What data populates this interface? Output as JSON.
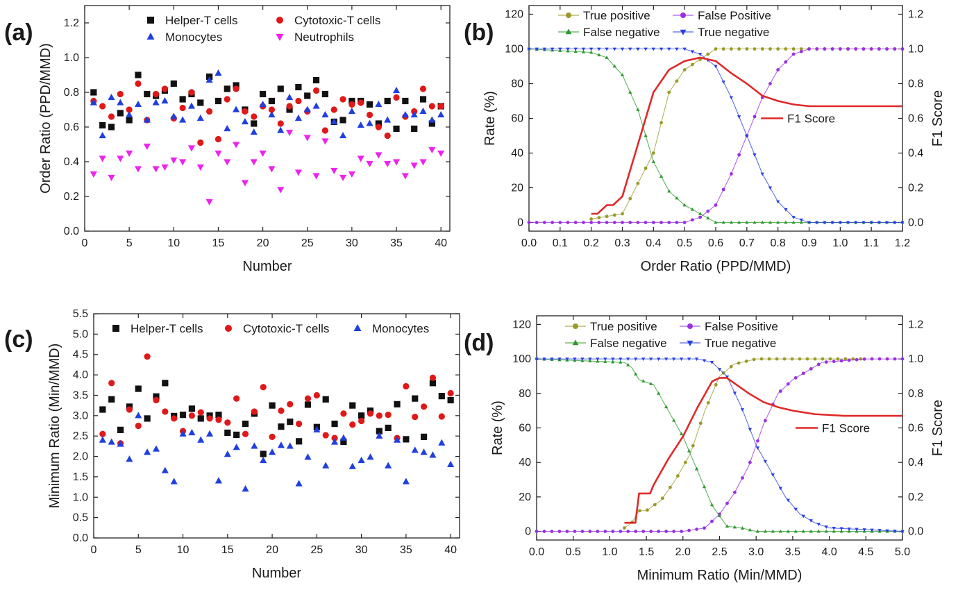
{
  "chart_data": [
    {
      "id": "a",
      "panel_label": "(a)",
      "type": "scatter",
      "xlabel": "Number",
      "ylabel": "Order Ratio (PPD/MMD)",
      "xlim": [
        0,
        41
      ],
      "ylim": [
        0.0,
        1.3
      ],
      "xticks": [
        0,
        5,
        10,
        15,
        20,
        25,
        30,
        35,
        40
      ],
      "yticks": [
        0.0,
        0.2,
        0.4,
        0.6,
        0.8,
        1.0,
        1.2
      ],
      "ytick_decimals": 1,
      "legend_columns": 2,
      "series": [
        {
          "name": "Helper-T cells",
          "marker": "square",
          "color": "#111111",
          "x": [
            1,
            2,
            3,
            4,
            5,
            6,
            7,
            8,
            9,
            10,
            11,
            12,
            13,
            14,
            15,
            16,
            17,
            18,
            19,
            20,
            21,
            22,
            23,
            24,
            25,
            26,
            27,
            28,
            29,
            30,
            31,
            32,
            33,
            34,
            35,
            36,
            37,
            38,
            39,
            40
          ],
          "y": [
            0.8,
            0.61,
            0.6,
            0.68,
            0.64,
            0.9,
            0.79,
            0.78,
            0.81,
            0.85,
            0.76,
            0.79,
            0.74,
            0.89,
            0.75,
            0.82,
            0.84,
            0.7,
            0.62,
            0.79,
            0.75,
            0.82,
            0.7,
            0.83,
            0.78,
            0.87,
            0.79,
            0.63,
            0.64,
            0.75,
            0.75,
            0.73,
            0.62,
            0.75,
            0.59,
            0.75,
            0.59,
            0.76,
            0.62,
            0.72
          ]
        },
        {
          "name": "Cytotoxic-T cells",
          "marker": "circle",
          "color": "#e01818",
          "x": [
            1,
            2,
            3,
            4,
            5,
            6,
            7,
            8,
            9,
            10,
            11,
            12,
            13,
            14,
            15,
            16,
            17,
            18,
            19,
            20,
            21,
            22,
            23,
            24,
            25,
            26,
            27,
            28,
            29,
            30,
            31,
            32,
            33,
            34,
            35,
            36,
            37,
            38,
            39,
            40
          ],
          "y": [
            0.75,
            0.72,
            0.66,
            0.79,
            0.7,
            0.85,
            0.64,
            0.79,
            0.82,
            0.65,
            0.71,
            0.8,
            0.51,
            0.69,
            0.53,
            0.76,
            0.82,
            0.69,
            0.66,
            0.72,
            0.7,
            0.62,
            0.72,
            0.75,
            0.69,
            0.81,
            0.58,
            0.7,
            0.76,
            0.73,
            0.74,
            0.67,
            0.6,
            0.55,
            0.77,
            0.66,
            0.69,
            0.82,
            0.72,
            0.72
          ]
        },
        {
          "name": "Monocytes",
          "marker": "triangle-up",
          "color": "#1f3fe0",
          "x": [
            1,
            2,
            3,
            4,
            5,
            6,
            7,
            8,
            9,
            10,
            11,
            12,
            13,
            14,
            15,
            16,
            17,
            18,
            19,
            20,
            21,
            22,
            23,
            24,
            25,
            26,
            27,
            28,
            29,
            30,
            31,
            32,
            33,
            34,
            35,
            36,
            37,
            38,
            39,
            40
          ],
          "y": [
            0.74,
            0.55,
            0.77,
            0.74,
            0.67,
            0.73,
            0.64,
            0.74,
            0.75,
            0.66,
            0.64,
            0.72,
            0.65,
            0.87,
            0.91,
            0.59,
            0.7,
            0.63,
            0.57,
            0.73,
            0.67,
            0.58,
            0.77,
            0.65,
            0.7,
            0.72,
            0.67,
            0.63,
            0.55,
            0.69,
            0.61,
            0.62,
            0.73,
            0.64,
            0.81,
            0.67,
            0.67,
            0.69,
            0.64,
            0.67
          ]
        },
        {
          "name": "Neutrophils",
          "marker": "triangle-down",
          "color": "#ee22ee",
          "x": [
            1,
            2,
            3,
            4,
            5,
            6,
            7,
            8,
            9,
            10,
            11,
            12,
            13,
            14,
            15,
            16,
            17,
            18,
            19,
            20,
            21,
            22,
            23,
            24,
            25,
            26,
            27,
            28,
            29,
            30,
            31,
            32,
            33,
            34,
            35,
            36,
            37,
            38,
            39,
            40
          ],
          "y": [
            0.33,
            0.42,
            0.31,
            0.42,
            0.45,
            0.36,
            0.49,
            0.36,
            0.37,
            0.41,
            0.4,
            0.48,
            0.37,
            0.17,
            0.45,
            0.4,
            0.5,
            0.28,
            0.4,
            0.45,
            0.36,
            0.24,
            0.57,
            0.34,
            0.54,
            0.32,
            0.52,
            0.35,
            0.31,
            0.33,
            0.42,
            0.39,
            0.44,
            0.39,
            0.4,
            0.32,
            0.38,
            0.4,
            0.47,
            0.45
          ]
        }
      ]
    },
    {
      "id": "b",
      "panel_label": "(b)",
      "type": "line",
      "xlabel": "Order Ratio (PPD/MMD)",
      "ylabel": "Rate (%)",
      "y2label": "F1 Score",
      "xlim": [
        0.0,
        1.2
      ],
      "ylim": [
        -5,
        125
      ],
      "y2lim": [
        -0.05,
        1.25
      ],
      "xticks": [
        0.0,
        0.1,
        0.2,
        0.3,
        0.4,
        0.5,
        0.6,
        0.7,
        0.8,
        0.9,
        1.0,
        1.1,
        1.2
      ],
      "yticks": [
        0,
        20,
        40,
        60,
        80,
        100,
        120
      ],
      "y2ticks": [
        0.0,
        0.2,
        0.4,
        0.6,
        0.8,
        1.0,
        1.2
      ],
      "xtick_decimals": 1,
      "y2tick_decimals": 1,
      "legend_columns": 2,
      "series": [
        {
          "name": "True positive",
          "marker": "circle",
          "color": "#9a9a2a",
          "x": [
            0.2,
            0.3,
            0.4,
            0.45,
            0.5,
            0.55,
            0.6,
            0.65,
            0.7,
            0.8,
            1.2
          ],
          "y": [
            2,
            5,
            40,
            75,
            88,
            94,
            100,
            100,
            100,
            100,
            100
          ]
        },
        {
          "name": "False Positive",
          "marker": "circle",
          "color": "#9a30e0",
          "x": [
            0.0,
            0.5,
            0.55,
            0.6,
            0.65,
            0.7,
            0.75,
            0.8,
            0.85,
            0.9,
            1.2
          ],
          "y": [
            0,
            0,
            3,
            10,
            28,
            50,
            72,
            88,
            97,
            100,
            100
          ]
        },
        {
          "name": "False negative",
          "marker": "triangle-up",
          "color": "#2e9a2e",
          "x": [
            0.0,
            0.2,
            0.25,
            0.3,
            0.35,
            0.4,
            0.45,
            0.5,
            0.55,
            0.6,
            1.2
          ],
          "y": [
            100,
            98,
            95,
            85,
            65,
            35,
            18,
            10,
            5,
            0,
            0
          ]
        },
        {
          "name": "True negative",
          "marker": "triangle-down",
          "color": "#2840e0",
          "x": [
            0.0,
            0.5,
            0.55,
            0.6,
            0.65,
            0.7,
            0.75,
            0.8,
            0.85,
            0.9,
            1.2
          ],
          "y": [
            100,
            100,
            97,
            90,
            72,
            50,
            28,
            12,
            3,
            0,
            0
          ]
        },
        {
          "name": "F1 Score",
          "marker": "none",
          "color": "#e02828",
          "axis": "y2",
          "x": [
            0.2,
            0.22,
            0.25,
            0.27,
            0.3,
            0.35,
            0.4,
            0.45,
            0.5,
            0.55,
            0.6,
            0.65,
            0.7,
            0.75,
            0.8,
            0.85,
            0.9,
            1.0,
            1.2
          ],
          "y": [
            0.05,
            0.05,
            0.1,
            0.1,
            0.15,
            0.45,
            0.75,
            0.88,
            0.93,
            0.95,
            0.93,
            0.86,
            0.8,
            0.73,
            0.7,
            0.68,
            0.67,
            0.67,
            0.67
          ]
        }
      ],
      "f1_legend": "F1 Score"
    },
    {
      "id": "c",
      "panel_label": "(c)",
      "type": "scatter",
      "xlabel": "Number",
      "ylabel": "Minimum Ratio (Min/MMD)",
      "xlim": [
        0,
        41
      ],
      "ylim": [
        0.0,
        5.5
      ],
      "xticks": [
        0,
        5,
        10,
        15,
        20,
        25,
        30,
        35,
        40
      ],
      "yticks": [
        0.0,
        0.5,
        1.0,
        1.5,
        2.0,
        2.5,
        3.0,
        3.5,
        4.0,
        4.5,
        5.0,
        5.5
      ],
      "ytick_decimals": 1,
      "legend_columns": 3,
      "series": [
        {
          "name": "Helper-T cells",
          "marker": "square",
          "color": "#111111",
          "x": [
            1,
            2,
            3,
            4,
            5,
            6,
            7,
            8,
            9,
            10,
            11,
            12,
            13,
            14,
            15,
            16,
            17,
            18,
            19,
            20,
            21,
            22,
            23,
            24,
            25,
            26,
            27,
            28,
            29,
            30,
            31,
            32,
            33,
            34,
            35,
            36,
            37,
            38,
            39,
            40
          ],
          "y": [
            3.15,
            3.4,
            2.65,
            3.22,
            3.66,
            2.93,
            3.47,
            3.8,
            2.99,
            3.02,
            3.17,
            2.93,
            3.0,
            3.02,
            2.58,
            2.53,
            2.8,
            3.05,
            2.06,
            3.25,
            2.73,
            2.85,
            2.37,
            3.27,
            2.72,
            3.4,
            2.8,
            2.36,
            3.25,
            3.0,
            3.12,
            2.62,
            2.7,
            3.28,
            2.42,
            3.42,
            2.48,
            3.8,
            3.48,
            3.38
          ]
        },
        {
          "name": "Cytotoxic-T cells",
          "marker": "circle",
          "color": "#e01818",
          "x": [
            1,
            2,
            3,
            4,
            5,
            6,
            7,
            8,
            9,
            10,
            11,
            12,
            13,
            14,
            15,
            16,
            17,
            18,
            19,
            20,
            21,
            22,
            23,
            24,
            25,
            26,
            27,
            28,
            29,
            30,
            31,
            32,
            33,
            34,
            35,
            36,
            37,
            38,
            39,
            40
          ],
          "y": [
            2.55,
            3.8,
            2.32,
            3.15,
            2.75,
            4.45,
            3.38,
            3.1,
            2.93,
            2.62,
            3.0,
            3.08,
            2.93,
            2.9,
            2.83,
            3.42,
            2.55,
            3.1,
            3.7,
            2.48,
            3.12,
            3.28,
            2.8,
            3.42,
            3.5,
            2.52,
            2.45,
            3.05,
            2.78,
            2.87,
            3.05,
            3.0,
            3.02,
            2.45,
            3.72,
            2.97,
            3.22,
            3.93,
            2.98,
            3.55
          ]
        },
        {
          "name": "Monocytes",
          "marker": "triangle-up",
          "color": "#1f3fe0",
          "x": [
            1,
            2,
            3,
            4,
            5,
            6,
            7,
            8,
            9,
            10,
            11,
            12,
            13,
            14,
            15,
            16,
            17,
            18,
            19,
            20,
            21,
            22,
            23,
            24,
            25,
            26,
            27,
            28,
            29,
            30,
            31,
            32,
            33,
            34,
            35,
            36,
            37,
            38,
            39,
            40
          ],
          "y": [
            2.4,
            2.35,
            2.3,
            1.93,
            3.0,
            2.1,
            2.18,
            1.65,
            1.38,
            2.55,
            2.58,
            2.4,
            2.55,
            1.4,
            2.05,
            2.22,
            1.2,
            2.25,
            1.9,
            2.1,
            2.27,
            2.25,
            1.33,
            1.98,
            2.65,
            1.77,
            2.35,
            2.45,
            1.75,
            1.9,
            1.98,
            2.5,
            1.77,
            2.4,
            1.38,
            2.15,
            2.1,
            2.03,
            2.33,
            1.8
          ]
        }
      ]
    },
    {
      "id": "d",
      "panel_label": "(d)",
      "type": "line",
      "xlabel": "Minimum Ratio (Min/MMD)",
      "ylabel": "Rate (%)",
      "y2label": "F1 Score",
      "xlim": [
        0.0,
        5.0
      ],
      "ylim": [
        -5,
        125
      ],
      "y2lim": [
        -0.05,
        1.25
      ],
      "xticks": [
        0.0,
        0.5,
        1.0,
        1.5,
        2.0,
        2.5,
        3.0,
        3.5,
        4.0,
        4.5,
        5.0
      ],
      "yticks": [
        0,
        20,
        40,
        60,
        80,
        100,
        120
      ],
      "y2ticks": [
        0.0,
        0.2,
        0.4,
        0.6,
        0.8,
        1.0,
        1.2
      ],
      "xtick_decimals": 1,
      "y2tick_decimals": 1,
      "legend_columns": 2,
      "series": [
        {
          "name": "True positive",
          "marker": "circle",
          "color": "#9a9a2a",
          "x": [
            1.2,
            1.3,
            1.4,
            1.5,
            1.7,
            1.9,
            2.1,
            2.3,
            2.5,
            2.7,
            3.0,
            3.5,
            4.5
          ],
          "y": [
            2,
            5,
            12,
            12,
            18,
            30,
            45,
            70,
            90,
            97,
            100,
            100,
            100
          ]
        },
        {
          "name": "False Positive",
          "marker": "circle",
          "color": "#9a30e0",
          "x": [
            0.0,
            2.0,
            2.3,
            2.5,
            2.7,
            2.9,
            3.1,
            3.3,
            3.5,
            3.7,
            3.9,
            4.2,
            4.5,
            5.0
          ],
          "y": [
            0,
            0,
            2,
            10,
            22,
            38,
            62,
            80,
            88,
            93,
            98,
            99,
            100,
            100
          ]
        },
        {
          "name": "False negative",
          "marker": "triangle-up",
          "color": "#2e9a2e",
          "x": [
            0.0,
            1.2,
            1.3,
            1.4,
            1.6,
            1.8,
            2.0,
            2.2,
            2.4,
            2.6,
            2.8,
            3.0,
            5.0
          ],
          "y": [
            100,
            98,
            95,
            88,
            85,
            70,
            55,
            35,
            15,
            3,
            2,
            0,
            0
          ]
        },
        {
          "name": "True negative",
          "marker": "triangle-down",
          "color": "#2840e0",
          "x": [
            0.0,
            2.2,
            2.4,
            2.6,
            2.8,
            3.0,
            3.2,
            3.4,
            3.6,
            3.8,
            4.0,
            4.5,
            5.0
          ],
          "y": [
            100,
            100,
            98,
            90,
            72,
            50,
            35,
            20,
            10,
            5,
            2,
            1,
            0
          ]
        },
        {
          "name": "F1 Score",
          "marker": "none",
          "color": "#e02828",
          "axis": "y2",
          "x": [
            1.2,
            1.35,
            1.4,
            1.55,
            1.6,
            1.8,
            2.0,
            2.2,
            2.4,
            2.5,
            2.6,
            2.7,
            2.9,
            3.1,
            3.3,
            3.5,
            3.8,
            4.2,
            5.0
          ],
          "y": [
            0.05,
            0.05,
            0.22,
            0.22,
            0.27,
            0.42,
            0.55,
            0.72,
            0.87,
            0.89,
            0.89,
            0.86,
            0.8,
            0.75,
            0.72,
            0.7,
            0.68,
            0.67,
            0.67
          ]
        }
      ],
      "f1_legend": "F1 Score"
    }
  ]
}
